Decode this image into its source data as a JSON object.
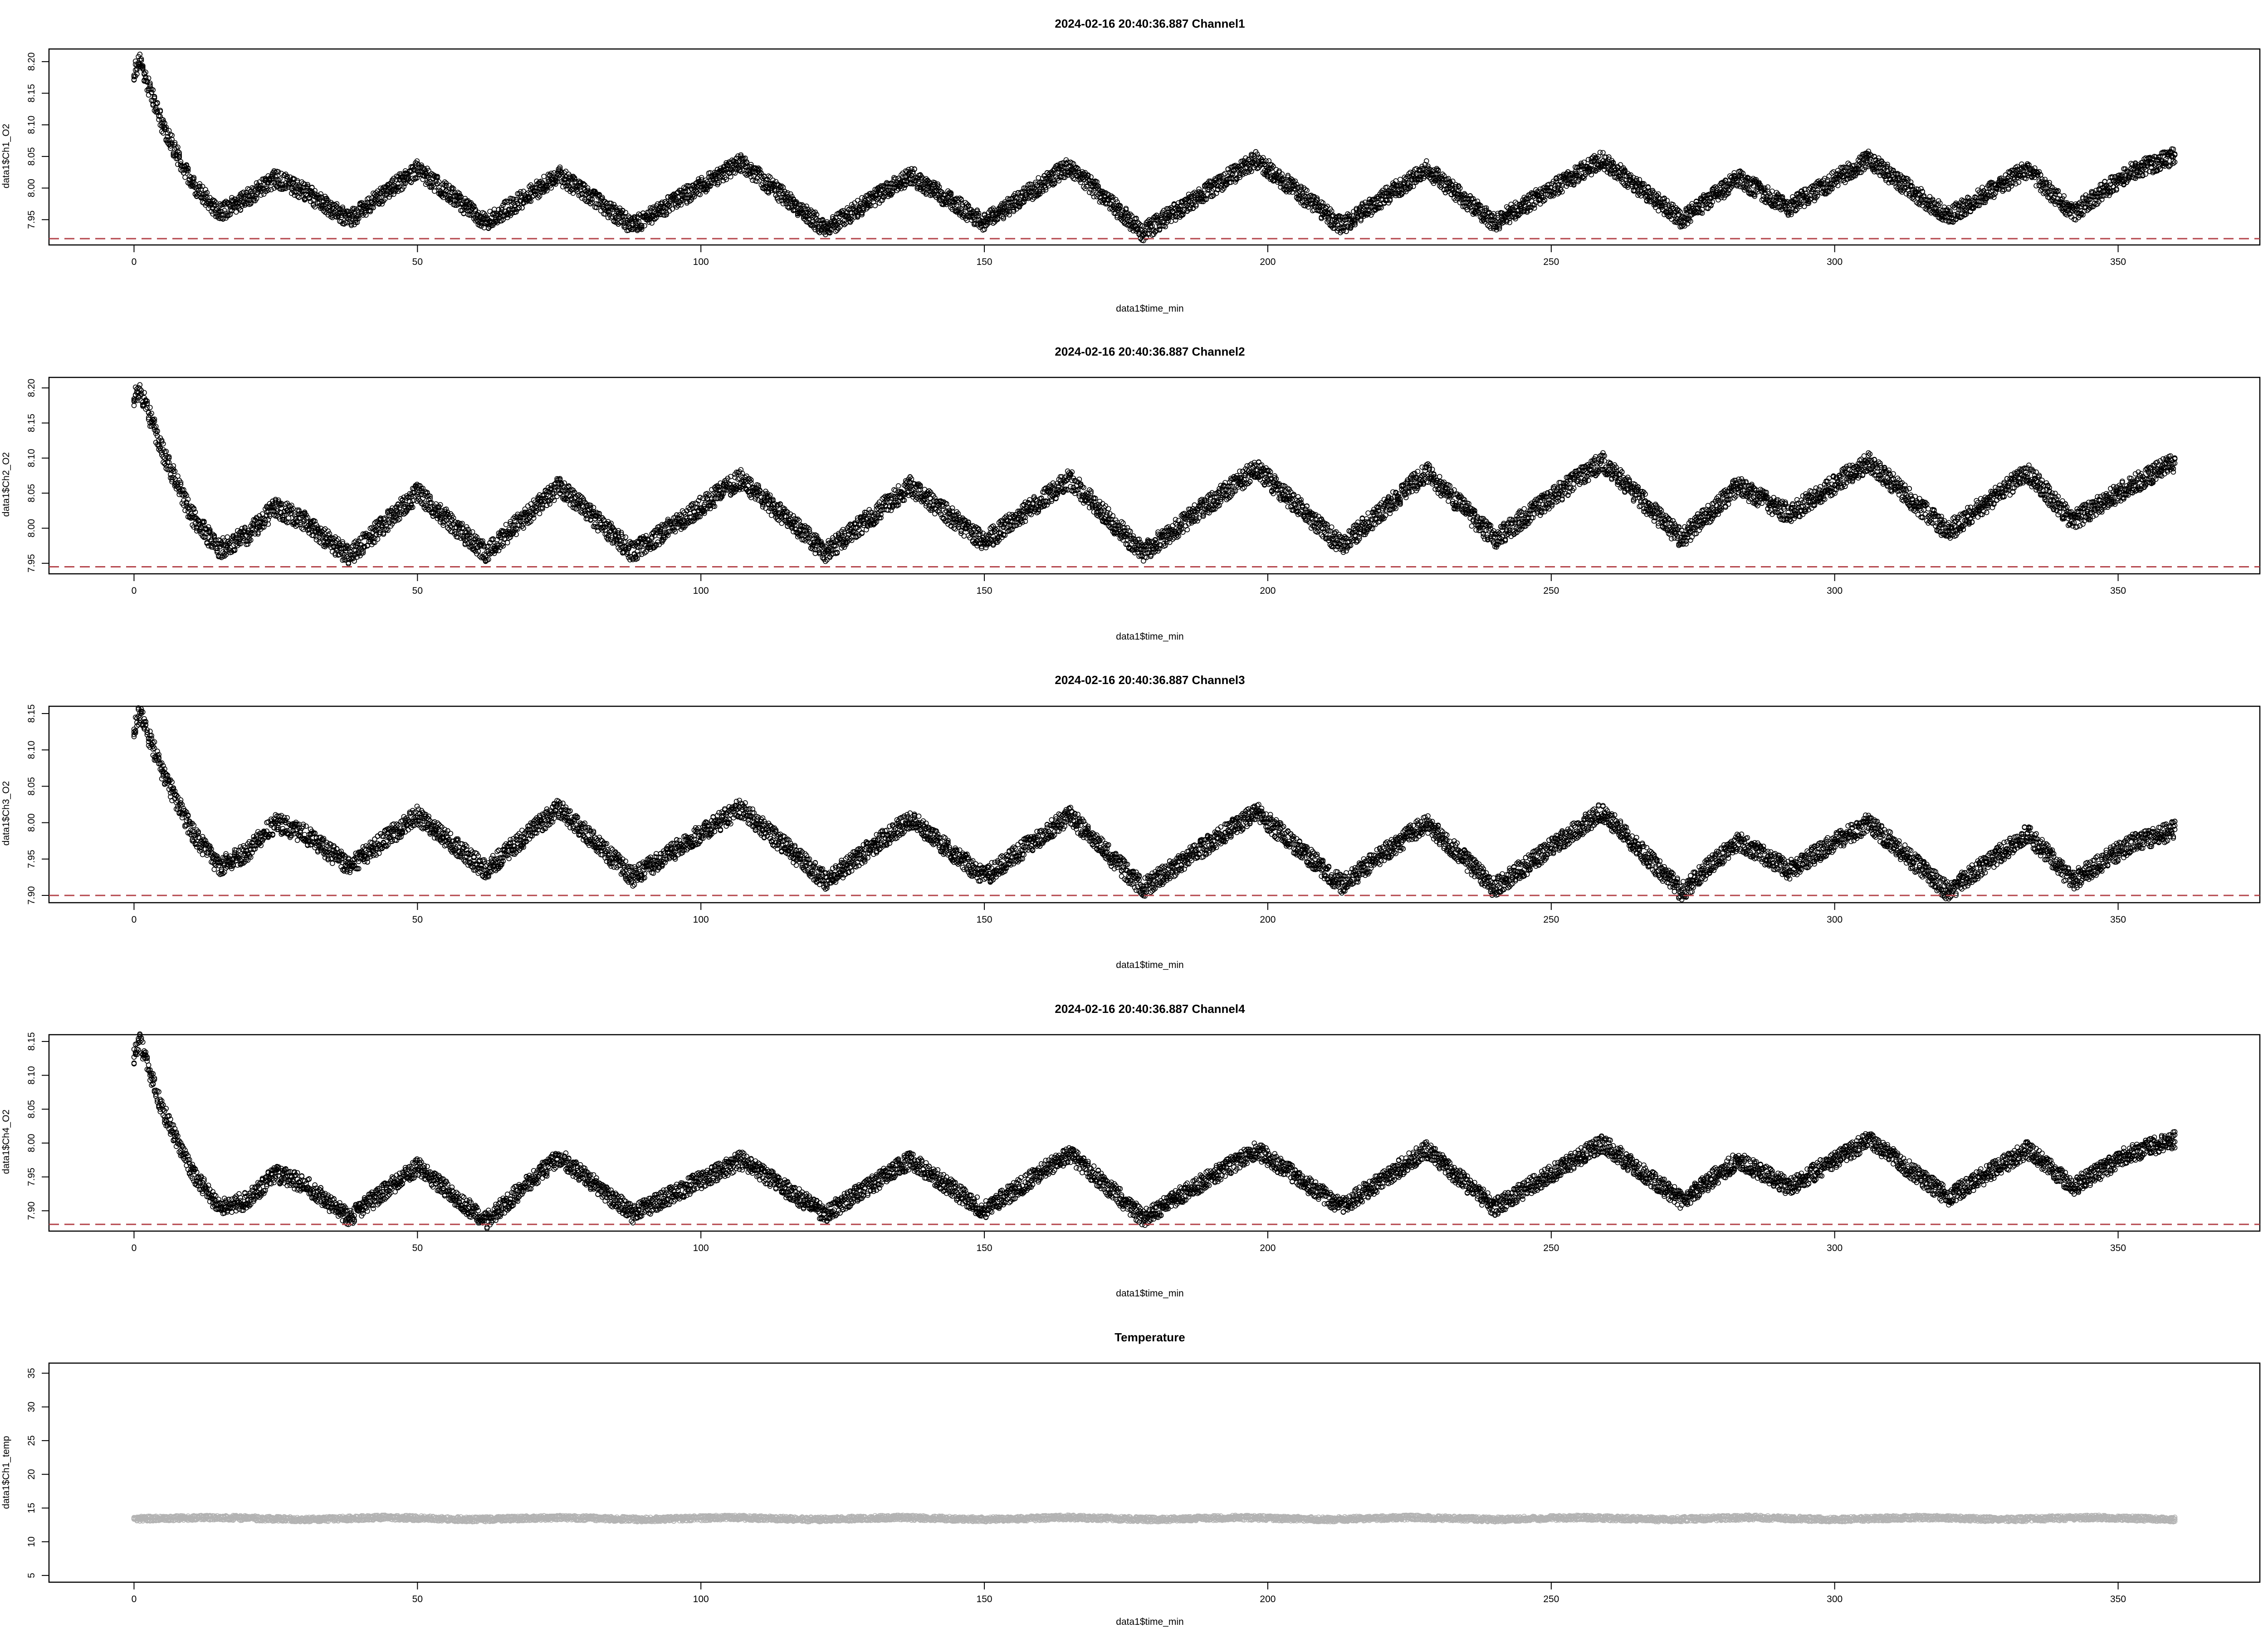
{
  "chart_data": [
    {
      "type": "scatter",
      "title": "2024-02-16 20:40:36.887 Channel1",
      "xlabel": "data1$time_min",
      "ylabel": "data1$Ch1_O2",
      "xlim": [
        -15,
        375
      ],
      "ylim": [
        7.91,
        8.22
      ],
      "xticks": [
        0,
        50,
        100,
        150,
        200,
        250,
        300,
        350
      ],
      "yticks": [
        7.95,
        8.0,
        8.05,
        8.1,
        8.15,
        8.2
      ],
      "ytick_labels": [
        "7.95",
        "8.00",
        "8.05",
        "8.10",
        "8.15",
        "8.20"
      ],
      "threshold": 7.92,
      "threshold_color": "#b4454b",
      "point_color": "#000000",
      "band_halfwidth": 0.014,
      "series": [
        {
          "x": [
            0,
            1,
            5,
            10,
            15,
            20,
            25,
            30,
            38,
            50,
            62,
            75,
            88,
            107,
            122,
            137,
            150,
            165,
            178,
            198,
            213,
            228,
            240,
            259,
            273,
            283,
            292,
            306,
            320,
            334,
            342,
            352,
            360
          ],
          "y": [
            8.185,
            8.2,
            8.1,
            8.01,
            7.96,
            7.985,
            8.015,
            7.995,
            7.95,
            8.03,
            7.945,
            8.02,
            7.94,
            8.04,
            7.935,
            8.02,
            7.945,
            8.035,
            7.93,
            8.045,
            7.94,
            8.03,
            7.945,
            8.045,
            7.95,
            8.015,
            7.97,
            8.045,
            7.955,
            8.03,
            7.96,
            8.025,
            8.05
          ]
        }
      ]
    },
    {
      "type": "scatter",
      "title": "2024-02-16 20:40:36.887 Channel2",
      "xlabel": "data1$time_min",
      "ylabel": "data1$Ch2_O2",
      "xlim": [
        -15,
        375
      ],
      "ylim": [
        7.935,
        8.215
      ],
      "xticks": [
        0,
        50,
        100,
        150,
        200,
        250,
        300,
        350
      ],
      "yticks": [
        7.95,
        8.0,
        8.05,
        8.1,
        8.15,
        8.2
      ],
      "ytick_labels": [
        "7.95",
        "8.00",
        "8.05",
        "8.10",
        "8.15",
        "8.20"
      ],
      "threshold": 7.945,
      "threshold_color": "#b4454b",
      "point_color": "#000000",
      "band_halfwidth": 0.014,
      "series": [
        {
          "x": [
            0,
            1,
            5,
            10,
            15,
            20,
            25,
            30,
            38,
            50,
            62,
            75,
            88,
            107,
            122,
            137,
            150,
            165,
            178,
            198,
            213,
            228,
            240,
            259,
            273,
            283,
            292,
            306,
            320,
            334,
            342,
            352,
            360
          ],
          "y": [
            8.185,
            8.2,
            8.11,
            8.02,
            7.97,
            7.99,
            8.03,
            8.01,
            7.96,
            8.05,
            7.965,
            8.06,
            7.965,
            8.07,
            7.965,
            8.06,
            7.98,
            8.07,
            7.965,
            8.085,
            7.975,
            8.08,
            7.985,
            8.095,
            7.985,
            8.06,
            8.02,
            8.095,
            7.995,
            8.08,
            8.01,
            8.06,
            8.095
          ]
        }
      ]
    },
    {
      "type": "scatter",
      "title": "2024-02-16 20:40:36.887 Channel3",
      "xlabel": "data1$time_min",
      "ylabel": "data1$Ch3_O2",
      "xlim": [
        -15,
        375
      ],
      "ylim": [
        7.89,
        8.16
      ],
      "xticks": [
        0,
        50,
        100,
        150,
        200,
        250,
        300,
        350
      ],
      "yticks": [
        7.9,
        7.95,
        8.0,
        8.05,
        8.1,
        8.15
      ],
      "ytick_labels": [
        "7.90",
        "7.95",
        "8.00",
        "8.05",
        "8.10",
        "8.15"
      ],
      "threshold": 7.9,
      "threshold_color": "#b4454b",
      "point_color": "#000000",
      "band_halfwidth": 0.013,
      "series": [
        {
          "x": [
            0,
            1,
            5,
            10,
            15,
            20,
            25,
            30,
            38,
            50,
            62,
            75,
            88,
            107,
            122,
            137,
            150,
            165,
            178,
            198,
            213,
            228,
            240,
            259,
            273,
            283,
            292,
            306,
            320,
            334,
            342,
            352,
            360
          ],
          "y": [
            8.13,
            8.15,
            8.07,
            7.99,
            7.94,
            7.96,
            8.0,
            7.985,
            7.94,
            8.01,
            7.935,
            8.02,
            7.925,
            8.02,
            7.92,
            8.005,
            7.925,
            8.01,
            7.91,
            8.015,
            7.915,
            8.0,
            7.91,
            8.015,
            7.905,
            7.975,
            7.935,
            8.0,
            7.905,
            7.985,
            7.92,
            7.97,
            7.99
          ]
        }
      ]
    },
    {
      "type": "scatter",
      "title": "2024-02-16 20:40:36.887 Channel4",
      "xlabel": "data1$time_min",
      "ylabel": "data1$Ch4_O2",
      "xlim": [
        -15,
        375
      ],
      "ylim": [
        7.87,
        8.16
      ],
      "xticks": [
        0,
        50,
        100,
        150,
        200,
        250,
        300,
        350
      ],
      "yticks": [
        7.9,
        7.95,
        8.0,
        8.05,
        8.1,
        8.15
      ],
      "ytick_labels": [
        "7.90",
        "7.95",
        "8.00",
        "8.05",
        "8.10",
        "8.15"
      ],
      "threshold": 7.88,
      "threshold_color": "#b4454b",
      "point_color": "#000000",
      "band_halfwidth": 0.013,
      "series": [
        {
          "x": [
            0,
            1,
            5,
            10,
            15,
            20,
            25,
            30,
            38,
            50,
            62,
            75,
            88,
            107,
            122,
            137,
            150,
            165,
            178,
            198,
            213,
            228,
            240,
            259,
            273,
            283,
            292,
            306,
            320,
            334,
            342,
            352,
            360
          ],
          "y": [
            8.13,
            8.15,
            8.05,
            7.96,
            7.905,
            7.915,
            7.955,
            7.94,
            7.89,
            7.965,
            7.885,
            7.98,
            7.895,
            7.975,
            7.895,
            7.975,
            7.9,
            7.985,
            7.89,
            7.99,
            7.905,
            7.99,
            7.905,
            8.0,
            7.915,
            7.975,
            7.935,
            8.005,
            7.92,
            7.99,
            7.935,
            7.985,
            8.005
          ]
        }
      ]
    },
    {
      "type": "scatter",
      "title": "Temperature",
      "xlabel": "data1$time_min",
      "ylabel": "data1$Ch1_temp",
      "xlim": [
        -15,
        375
      ],
      "ylim": [
        4,
        36.5
      ],
      "xticks": [
        0,
        50,
        100,
        150,
        200,
        250,
        300,
        350
      ],
      "yticks": [
        5,
        10,
        15,
        20,
        25,
        30,
        35
      ],
      "ytick_labels": [
        "5",
        "10",
        "15",
        "20",
        "25",
        "30",
        "35"
      ],
      "point_color": "#b3b3b3",
      "band_halfwidth": 0.35,
      "series": [
        {
          "x": [
            0,
            15,
            30,
            45,
            60,
            75,
            90,
            105,
            120,
            135,
            150,
            165,
            180,
            195,
            210,
            225,
            240,
            255,
            270,
            285,
            300,
            315,
            330,
            345,
            360
          ],
          "y": [
            13.4,
            13.6,
            13.3,
            13.6,
            13.3,
            13.6,
            13.3,
            13.6,
            13.3,
            13.6,
            13.3,
            13.6,
            13.3,
            13.6,
            13.3,
            13.6,
            13.3,
            13.6,
            13.3,
            13.6,
            13.3,
            13.6,
            13.3,
            13.6,
            13.3
          ]
        }
      ]
    }
  ]
}
